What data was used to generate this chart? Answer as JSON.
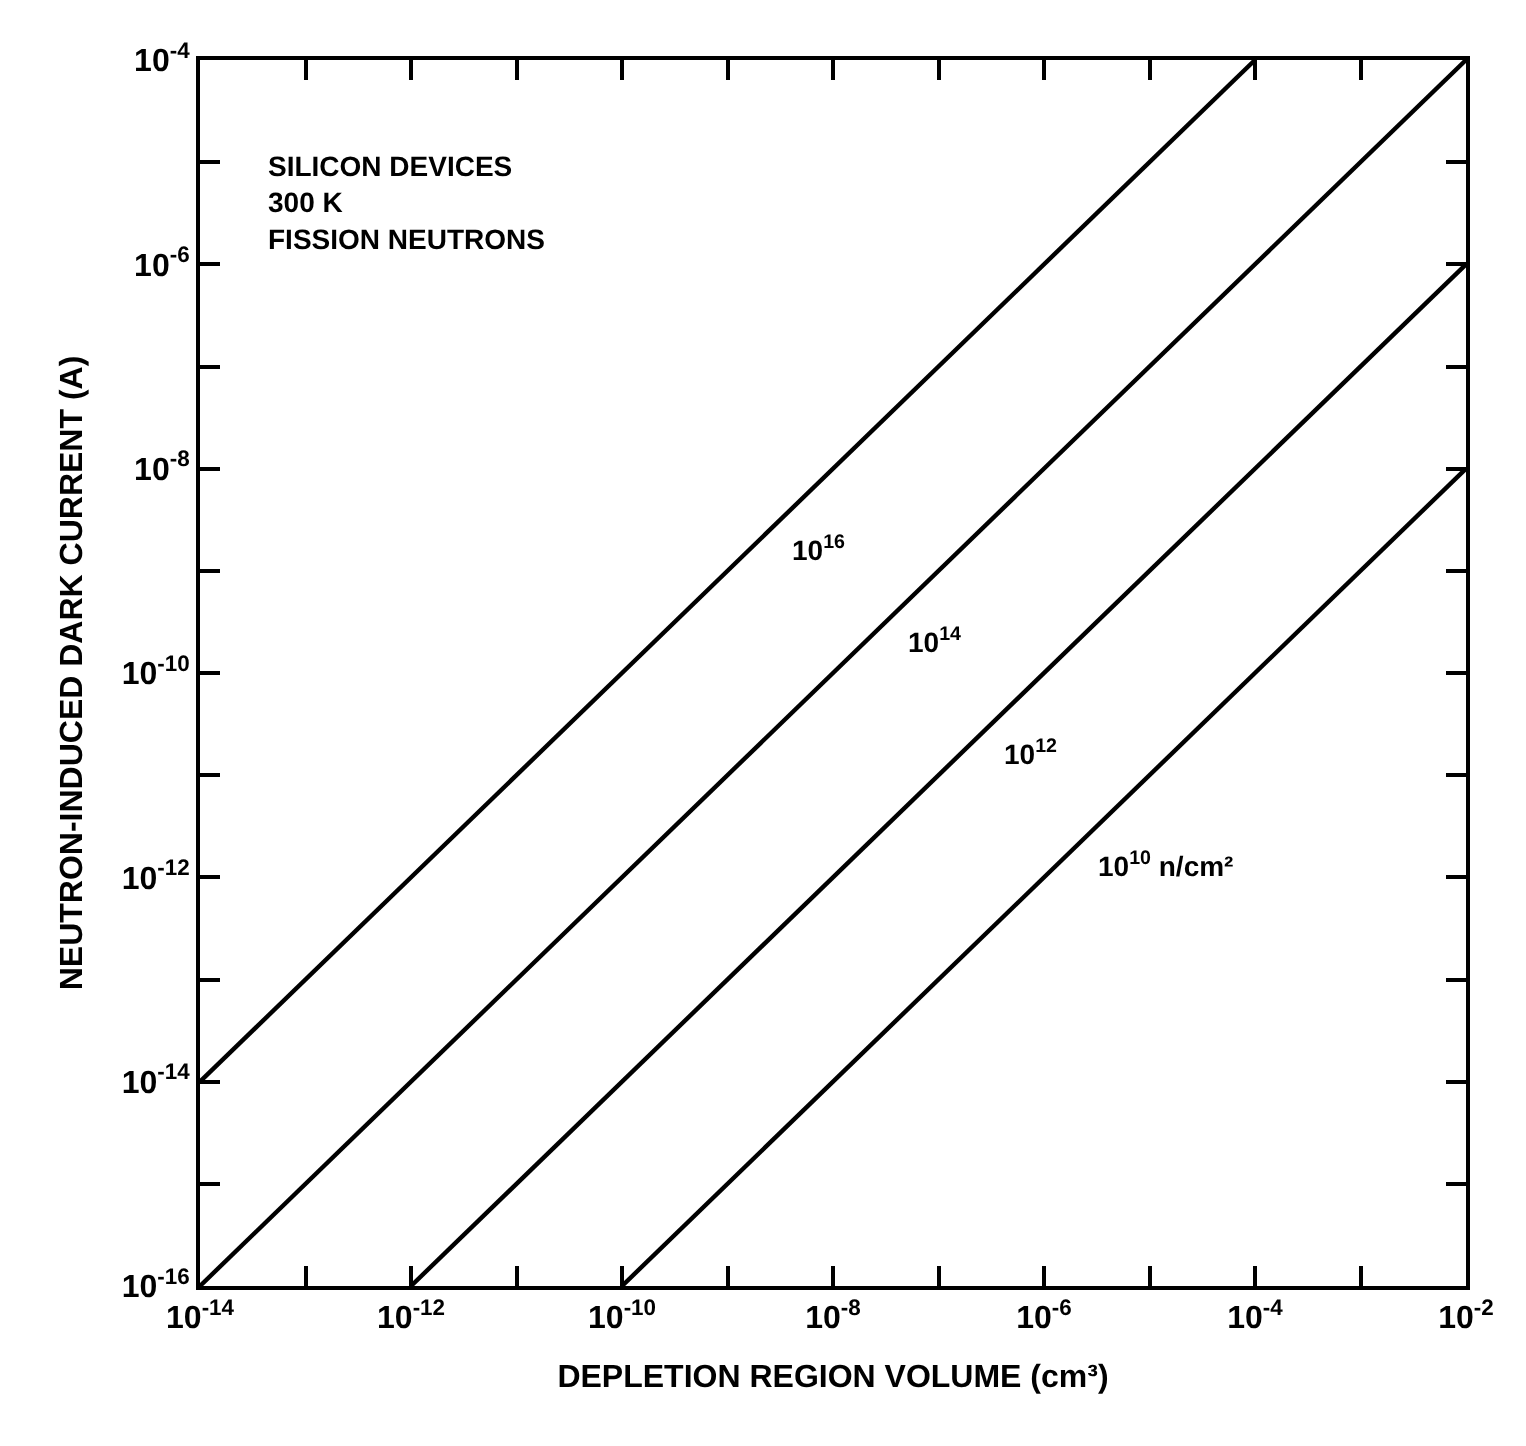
{
  "chart_data": {
    "type": "line",
    "xlabel": "DEPLETION REGION VOLUME (cm³)",
    "ylabel": "NEUTRON-INDUCED DARK CURRENT (A)",
    "annotations": [
      "SILICON DEVICES\n300 K\nFISSION NEUTRONS"
    ],
    "log": "xy",
    "grid": false,
    "legend": false,
    "marker": "none",
    "line_style": "solid",
    "xlim": [
      1e-14,
      0.01
    ],
    "ylim": [
      1e-16,
      0.0001
    ],
    "xticks": [
      {
        "value": 1e-14,
        "label": "10$^{-14}$"
      },
      {
        "value": 1e-13,
        "label": null
      },
      {
        "value": 1e-12,
        "label": "10$^{-12}$"
      },
      {
        "value": 1e-11,
        "label": null
      },
      {
        "value": 1e-10,
        "label": "10$^{-10}$"
      },
      {
        "value": 1e-09,
        "label": null
      },
      {
        "value": 1e-08,
        "label": "10$^{-8}$"
      },
      {
        "value": 1e-07,
        "label": null
      },
      {
        "value": 1e-06,
        "label": "10$^{-6}$"
      },
      {
        "value": 1e-05,
        "label": null
      },
      {
        "value": 0.0001,
        "label": "10$^{-4}$"
      },
      {
        "value": 0.001,
        "label": null
      },
      {
        "value": 0.01,
        "label": "10$^{-2}$"
      }
    ],
    "yticks": [
      {
        "value": 1e-16,
        "label": "10$^{-16}$"
      },
      {
        "value": 1e-15,
        "label": null
      },
      {
        "value": 1e-14,
        "label": "10$^{-14}$"
      },
      {
        "value": 1e-13,
        "label": null
      },
      {
        "value": 1e-12,
        "label": "10$^{-12}$"
      },
      {
        "value": 1e-11,
        "label": null
      },
      {
        "value": 1e-10,
        "label": "10$^{-10}$"
      },
      {
        "value": 1e-09,
        "label": null
      },
      {
        "value": 1e-08,
        "label": "10$^{-8}$"
      },
      {
        "value": 1e-07,
        "label": null
      },
      {
        "value": 1e-06,
        "label": "10$^{-6}$"
      },
      {
        "value": 1e-05,
        "label": null
      },
      {
        "value": 0.0001,
        "label": "10$^{-4}$"
      }
    ],
    "series": [
      {
        "name": "10$^{16}$",
        "color": "#000000",
        "x": [
          1e-14,
          0.0001
        ],
        "values": [
          1e-14,
          0.0001
        ]
      },
      {
        "name": "10$^{14}$",
        "color": "#000000",
        "x": [
          1e-14,
          0.01
        ],
        "values": [
          1e-16,
          0.0001
        ]
      },
      {
        "name": "10$^{12}$",
        "color": "#000000",
        "x": [
          1e-12,
          0.01
        ],
        "values": [
          1e-16,
          1e-06
        ]
      },
      {
        "name": "10$^{10}$ n/cm²",
        "color": "#000000",
        "x": [
          1e-10,
          0.01
        ],
        "values": [
          1e-16,
          1e-08
        ]
      }
    ]
  }
}
